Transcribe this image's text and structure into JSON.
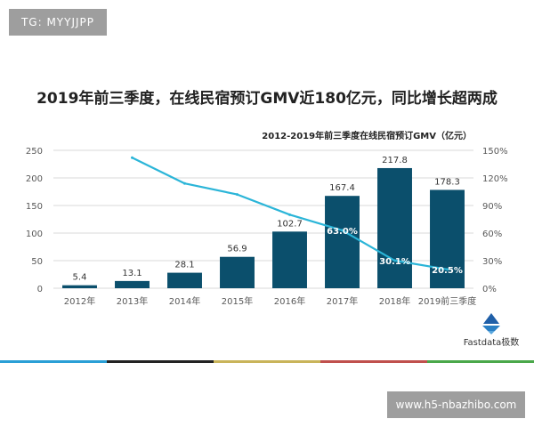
{
  "watermarks": {
    "top": "TG: MYYJJPP",
    "bottom": "www.h5-nbazhibo.com"
  },
  "brand": {
    "label": "Fastdata极数",
    "color": "#1f5fa8"
  },
  "footer_colors": [
    "#2a9fd6",
    "#222222",
    "#c9b45a",
    "#c0504d",
    "#4aa84a"
  ],
  "chart_data": {
    "type": "bar",
    "title": "2019年前三季度，在线民宿预订GMV近180亿元，同比增长超两成",
    "subtitle": "2012-2019年前三季度在线民宿预订GMV（亿元）",
    "categories": [
      "2012年",
      "2013年",
      "2014年",
      "2015年",
      "2016年",
      "2017年",
      "2018年",
      "2019前三季度"
    ],
    "series": [
      {
        "type": "bar",
        "values": [
          5.4,
          13.1,
          28.1,
          56.9,
          102.7,
          167.4,
          217.8,
          178.3
        ],
        "labels": [
          "5.4",
          "13.1",
          "28.1",
          "56.9",
          "102.7",
          "167.4",
          "217.8",
          "178.3"
        ],
        "color": "#0b4f6c",
        "axis": "left"
      },
      {
        "type": "line",
        "values": [
          null,
          142,
          114,
          102,
          80,
          63.0,
          30.1,
          20.5
        ],
        "labels": {
          "5": "63.0%",
          "6": "30.1%",
          "7": "20.5%"
        },
        "color": "#2bb5d8",
        "axis": "right"
      }
    ],
    "ylim": [
      0,
      250
    ],
    "yticks": [
      "0",
      "50",
      "100",
      "150",
      "200",
      "250"
    ],
    "ylim_right": [
      0,
      150
    ],
    "yticks_right": [
      "0%",
      "30%",
      "60%",
      "90%",
      "120%",
      "150%"
    ],
    "grid": true
  }
}
